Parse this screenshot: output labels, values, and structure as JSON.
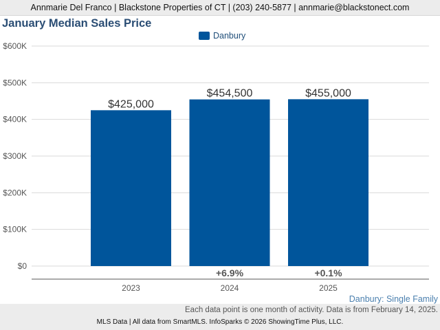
{
  "header": {
    "contact": "Annmarie Del Franco | Blackstone Properties of CT | (203) 240-5877 | annmarie@blackstonect.com"
  },
  "colors": {
    "bar": "#00559b",
    "title": "#2a4d74",
    "grid": "#d9d9d9"
  },
  "chart_data": {
    "type": "bar",
    "title": "January Median Sales Price",
    "categories": [
      "2023",
      "2024",
      "2025"
    ],
    "series": [
      {
        "name": "Danbury",
        "values": [
          425000,
          454500,
          455000
        ]
      }
    ],
    "value_labels": [
      "$425,000",
      "$454,500",
      "$455,000"
    ],
    "change_labels": [
      "",
      "+6.9%",
      "+0.1%"
    ],
    "ylim": [
      0,
      600000
    ],
    "yticks": [
      0,
      100000,
      200000,
      300000,
      400000,
      500000,
      600000
    ],
    "ytick_labels": [
      "$0",
      "$100K",
      "$200K",
      "$300K",
      "$400K",
      "$500K",
      "$600K"
    ],
    "grid": true,
    "legend_position": "top-center"
  },
  "footer": {
    "series_note": "Danbury: Single Family",
    "data_note": "Each data point is one month of activity. Data is from February 14, 2025.",
    "source": "MLS Data | All data from SmartMLS. InfoSparks © 2026 ShowingTime Plus, LLC."
  }
}
